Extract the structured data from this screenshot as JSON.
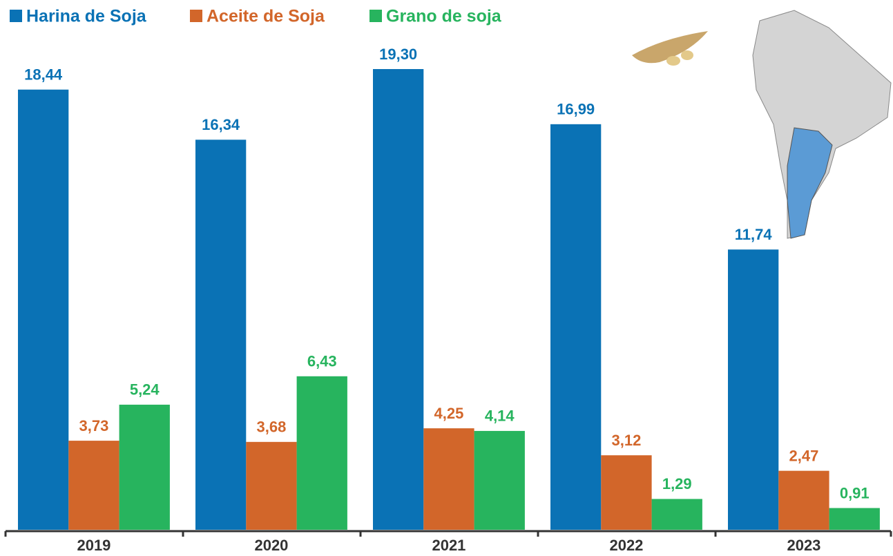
{
  "chart_data": {
    "type": "bar",
    "categories": [
      "2019",
      "2020",
      "2021",
      "2022",
      "2023"
    ],
    "series": [
      {
        "name": "Harina de Soja",
        "color": "#0a72b5",
        "values": [
          18.44,
          16.34,
          19.3,
          16.99,
          11.74
        ],
        "value_labels": [
          "18,44",
          "16,34",
          "19,30",
          "16,99",
          "11,74"
        ]
      },
      {
        "name": "Aceite de Soja",
        "color": "#d2662a",
        "values": [
          3.73,
          3.68,
          4.25,
          3.12,
          2.47
        ],
        "value_labels": [
          "3,73",
          "3,68",
          "4,25",
          "3,12",
          "2,47"
        ]
      },
      {
        "name": "Grano de soja",
        "color": "#27b45e",
        "values": [
          5.24,
          6.43,
          4.14,
          1.29,
          0.91
        ],
        "value_labels": [
          "5,24",
          "6,43",
          "4,14",
          "1,29",
          "0,91"
        ]
      }
    ],
    "legend": "top-left"
  }
}
